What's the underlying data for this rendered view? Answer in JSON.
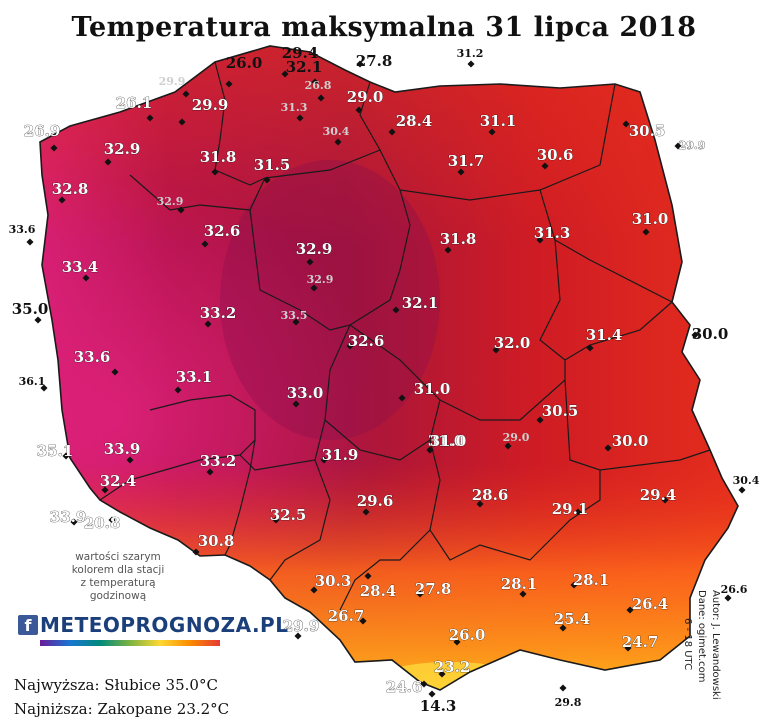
{
  "title": "Temperatura maksymalna 31 lipca 2018",
  "note_lines": [
    "wartości szarym",
    "kolorem dla stacji",
    "z temperaturą",
    "godzinową"
  ],
  "logo": {
    "fb": "f",
    "text": "METEOPROGNOZA.PL"
  },
  "extremes": {
    "highest": "Najwyższa: Słubice 35.0°C",
    "lowest": "Najniższa: Zakopane 23.2°C"
  },
  "credits": [
    "Autor: J. Lewandowski",
    "Dane: ogimet.com",
    "6 - 18 UTC"
  ],
  "colors": {
    "scale": [
      "#ffd21e",
      "#ff8c1a",
      "#e8301c",
      "#cf1c24",
      "#b3124a",
      "#9e0f5a",
      "#e0227e"
    ],
    "border": "#1a1a1a",
    "sea": "#ffffff"
  },
  "stations": [
    {
      "v": "29.4",
      "g": false
    },
    {
      "v": "26.0",
      "g": false
    },
    {
      "v": "32.1",
      "g": false
    },
    {
      "v": "26.8",
      "g": true
    },
    {
      "v": "27.8",
      "g": false
    },
    {
      "v": "31.2",
      "g": false
    },
    {
      "v": "29.9",
      "g": true
    },
    {
      "v": "26.1",
      "g": false
    },
    {
      "v": "29.9",
      "g": false
    },
    {
      "v": "31.3",
      "g": true
    },
    {
      "v": "29.0",
      "g": false
    },
    {
      "v": "30.4",
      "g": true
    },
    {
      "v": "28.4",
      "g": false
    },
    {
      "v": "31.1",
      "g": false
    },
    {
      "v": "30.5",
      "g": false
    },
    {
      "v": "29.9",
      "g": false
    },
    {
      "v": "26.9",
      "g": false
    },
    {
      "v": "32.9",
      "g": false
    },
    {
      "v": "31.8",
      "g": false
    },
    {
      "v": "31.5",
      "g": false
    },
    {
      "v": "31.7",
      "g": false
    },
    {
      "v": "30.6",
      "g": false
    },
    {
      "v": "32.8",
      "g": false
    },
    {
      "v": "32.9",
      "g": true
    },
    {
      "v": "33.6",
      "g": false
    },
    {
      "v": "32.6",
      "g": false
    },
    {
      "v": "32.9",
      "g": false
    },
    {
      "v": "31.8",
      "g": false
    },
    {
      "v": "31.3",
      "g": false
    },
    {
      "v": "31.0",
      "g": false
    },
    {
      "v": "33.4",
      "g": false
    },
    {
      "v": "32.9",
      "g": true
    },
    {
      "v": "35.0",
      "g": false
    },
    {
      "v": "33.2",
      "g": false
    },
    {
      "v": "33.5",
      "g": true
    },
    {
      "v": "32.1",
      "g": false
    },
    {
      "v": "32.6",
      "g": false
    },
    {
      "v": "32.0",
      "g": false
    },
    {
      "v": "31.4",
      "g": false
    },
    {
      "v": "30.0",
      "g": false
    },
    {
      "v": "33.6",
      "g": false
    },
    {
      "v": "36.1",
      "g": false
    },
    {
      "v": "33.1",
      "g": false
    },
    {
      "v": "33.0",
      "g": false
    },
    {
      "v": "31.0",
      "g": false
    },
    {
      "v": "31.0",
      "g": false
    },
    {
      "v": "30.5",
      "g": false
    },
    {
      "v": "35.1",
      "g": false
    },
    {
      "v": "33.9",
      "g": false
    },
    {
      "v": "33.2",
      "g": false
    },
    {
      "v": "31.9",
      "g": false
    },
    {
      "v": "31.0",
      "g": false
    },
    {
      "v": "29.0",
      "g": true
    },
    {
      "v": "30.0",
      "g": false
    },
    {
      "v": "30.4",
      "g": false
    },
    {
      "v": "32.4",
      "g": false
    },
    {
      "v": "29.6",
      "g": false
    },
    {
      "v": "28.6",
      "g": false
    },
    {
      "v": "29.1",
      "g": false
    },
    {
      "v": "29.4",
      "g": false
    },
    {
      "v": "33.9",
      "g": false
    },
    {
      "v": "20.8",
      "g": false
    },
    {
      "v": "32.5",
      "g": false
    },
    {
      "v": "30.8",
      "g": false
    },
    {
      "v": "28.4",
      "g": false
    },
    {
      "v": "27.8",
      "g": false
    },
    {
      "v": "28.1",
      "g": false
    },
    {
      "v": "28.1",
      "g": false
    },
    {
      "v": "30.3",
      "g": false
    },
    {
      "v": "26.6",
      "g": false
    },
    {
      "v": "26.7",
      "g": false
    },
    {
      "v": "25.4",
      "g": false
    },
    {
      "v": "26.4",
      "g": false
    },
    {
      "v": "29.9",
      "g": false
    },
    {
      "v": "26.0",
      "g": false
    },
    {
      "v": "24.7",
      "g": false
    },
    {
      "v": "23.2",
      "g": false
    },
    {
      "v": "24.6",
      "g": false
    },
    {
      "v": "14.3",
      "g": false
    },
    {
      "v": "29.8",
      "g": false
    }
  ]
}
